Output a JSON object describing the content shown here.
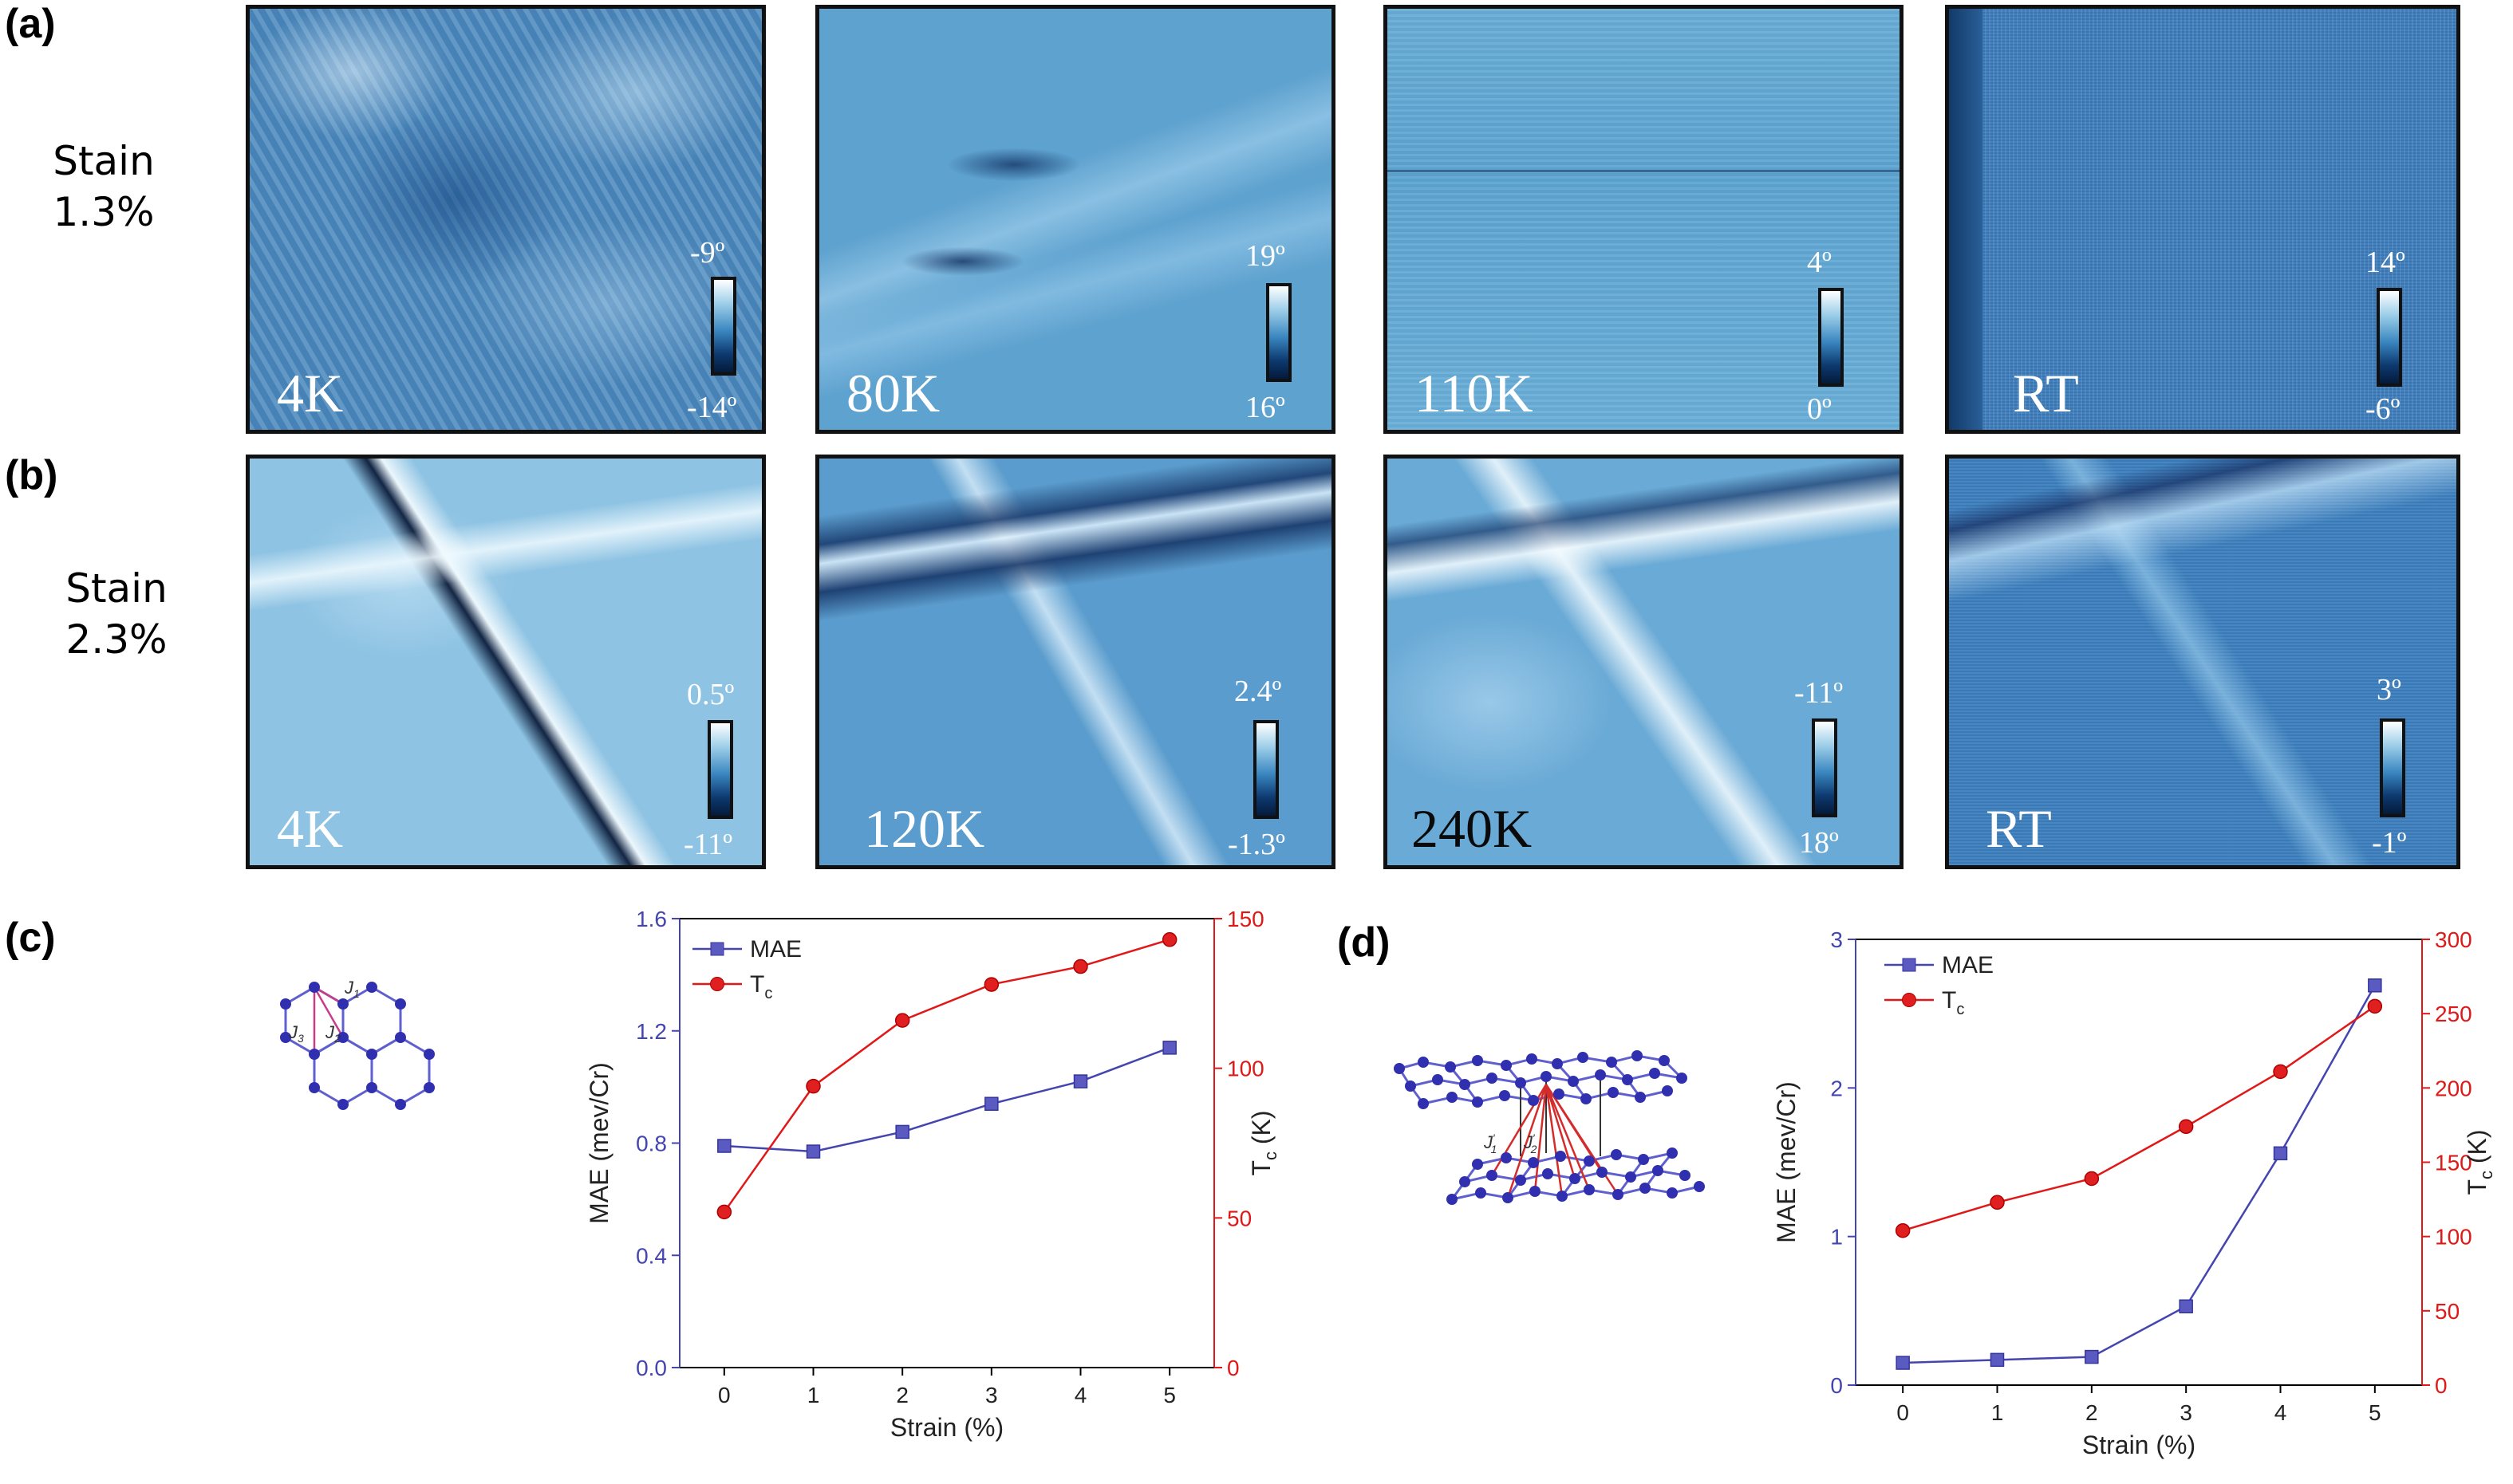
{
  "figure": {
    "panel_labels": [
      "(a)",
      "(b)",
      "(c)",
      "(d)"
    ],
    "row_a": {
      "label_line1": "Stain",
      "label_line2": "1.3%",
      "panels": [
        {
          "temp": "4K",
          "cb_max": "-9º",
          "cb_min": "-14º"
        },
        {
          "temp": "80K",
          "cb_max": "19º",
          "cb_min": "16º"
        },
        {
          "temp": "110K",
          "cb_max": "4º",
          "cb_min": "0º"
        },
        {
          "temp": "RT",
          "cb_max": "14º",
          "cb_min": "-6º"
        }
      ]
    },
    "row_b": {
      "label_line1": "Stain",
      "label_line2": "2.3%",
      "panels": [
        {
          "temp": "4K",
          "cb_max": "0.5º",
          "cb_min": "-11º"
        },
        {
          "temp": "120K",
          "cb_max": "2.4º",
          "cb_min": "-1.3º"
        },
        {
          "temp": "240K",
          "cb_max": "-11º",
          "cb_min": "18º"
        },
        {
          "temp": "RT",
          "cb_max": "3º",
          "cb_min": "-1º"
        }
      ]
    },
    "lattice_c": {
      "j1": "J",
      "j1_sub": "1",
      "j2": "J",
      "j2_sub": "2",
      "j3": "J",
      "j3_sub": "3"
    },
    "lattice_d": {
      "j1": "J",
      "j1_sub": "1",
      "j1_sup": "′",
      "j2": "J",
      "j2_sub": "2",
      "j2_sup": "′"
    }
  },
  "colors": {
    "mae_series": "#4545b0",
    "tc_series": "#e01818",
    "lattice_bond": "#5f5fcf",
    "lattice_atom": "#2f2fb0",
    "exchange_line": "#c83c8c"
  },
  "chart_data": [
    {
      "type": "line",
      "panel": "(c)",
      "x": [
        0,
        1,
        2,
        3,
        4,
        5
      ],
      "xlabel": "Strain (%)",
      "ylabel": "MAE (mev/Cr)",
      "y2label": "T",
      "y2label_sub": "c",
      "y2label_unit": " (K)",
      "xlim": [
        -0.5,
        5.5
      ],
      "ylim": [
        0,
        1.6
      ],
      "y2lim": [
        0,
        150
      ],
      "xticks": [
        0,
        1,
        2,
        3,
        4,
        5
      ],
      "yticks": [
        "0.0",
        "0.4",
        "0.8",
        "1.2",
        "1.6"
      ],
      "y2ticks": [
        0,
        50,
        100,
        150
      ],
      "series": [
        {
          "name": "MAE",
          "axis": "left",
          "marker": "square",
          "values": [
            0.79,
            0.77,
            0.84,
            0.94,
            1.02,
            1.14
          ]
        },
        {
          "name": "T",
          "name_sub": "c",
          "axis": "right",
          "marker": "circle",
          "values": [
            52,
            94,
            116,
            128,
            134,
            143
          ]
        }
      ]
    },
    {
      "type": "line",
      "panel": "(d)",
      "x": [
        0,
        1,
        2,
        3,
        4,
        5
      ],
      "xlabel": "Strain (%)",
      "ylabel": "MAE (mev/Cr)",
      "y2label": "T",
      "y2label_sub": "c",
      "y2label_unit": " (K)",
      "xlim": [
        -0.5,
        5.5
      ],
      "ylim": [
        0,
        3
      ],
      "y2lim": [
        0,
        300
      ],
      "xticks": [
        0,
        1,
        2,
        3,
        4,
        5
      ],
      "yticks": [
        "0",
        "1",
        "2",
        "3"
      ],
      "y2ticks": [
        0,
        50,
        100,
        150,
        200,
        250,
        300
      ],
      "series": [
        {
          "name": "MAE",
          "axis": "left",
          "marker": "square",
          "values": [
            0.15,
            0.17,
            0.19,
            0.53,
            1.56,
            2.69
          ]
        },
        {
          "name": "T",
          "name_sub": "c",
          "axis": "right",
          "marker": "circle",
          "values": [
            104,
            123,
            139,
            174,
            211,
            255
          ]
        }
      ]
    }
  ]
}
